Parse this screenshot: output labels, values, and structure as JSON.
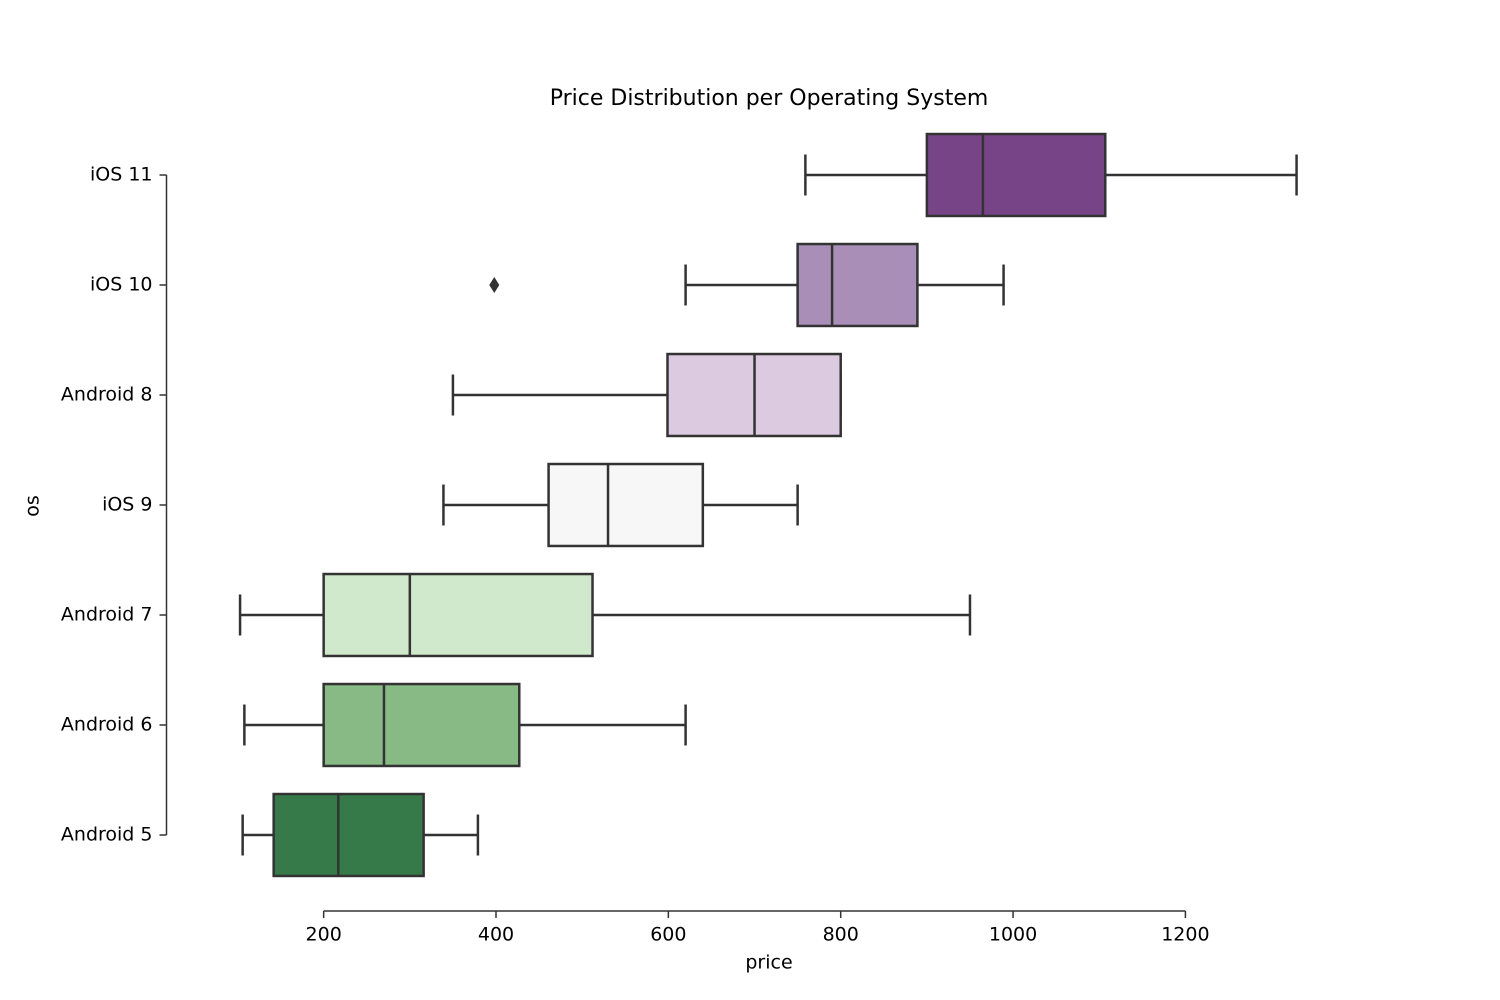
{
  "chart_data": {
    "type": "boxplot",
    "title": "Price Distribution per Operating System",
    "x_label": "price",
    "y_label": "os",
    "categories": [
      "iOS 11",
      "iOS 10",
      "Android 8",
      "iOS 9",
      "Android 7",
      "Android 6",
      "Android 5"
    ],
    "colors": [
      "#774488",
      "#a98fb8",
      "#dccbe0",
      "#f7f7f7",
      "#d0e8cb",
      "#87ba84",
      "#357a48"
    ],
    "boxes": [
      {
        "low": 759,
        "q1": 900,
        "median": 965,
        "q3": 1107,
        "high": 1329,
        "outliers": []
      },
      {
        "low": 620,
        "q1": 750,
        "median": 790,
        "q3": 889,
        "high": 989,
        "outliers": [
          398
        ]
      },
      {
        "low": 350,
        "q1": 599,
        "median": 700,
        "q3": 800,
        "high": 800,
        "outliers": []
      },
      {
        "low": 339,
        "q1": 461,
        "median": 530,
        "q3": 640,
        "high": 750,
        "outliers": []
      },
      {
        "low": 103,
        "q1": 200,
        "median": 300,
        "q3": 512,
        "high": 950,
        "outliers": []
      },
      {
        "low": 108,
        "q1": 200,
        "median": 270,
        "q3": 427,
        "high": 620,
        "outliers": []
      },
      {
        "low": 106,
        "q1": 142,
        "median": 217,
        "q3": 316,
        "high": 379,
        "outliers": []
      }
    ],
    "xlim": [
      42,
      1391
    ],
    "xticks": [
      200,
      400,
      600,
      800,
      1000,
      1200
    ]
  }
}
